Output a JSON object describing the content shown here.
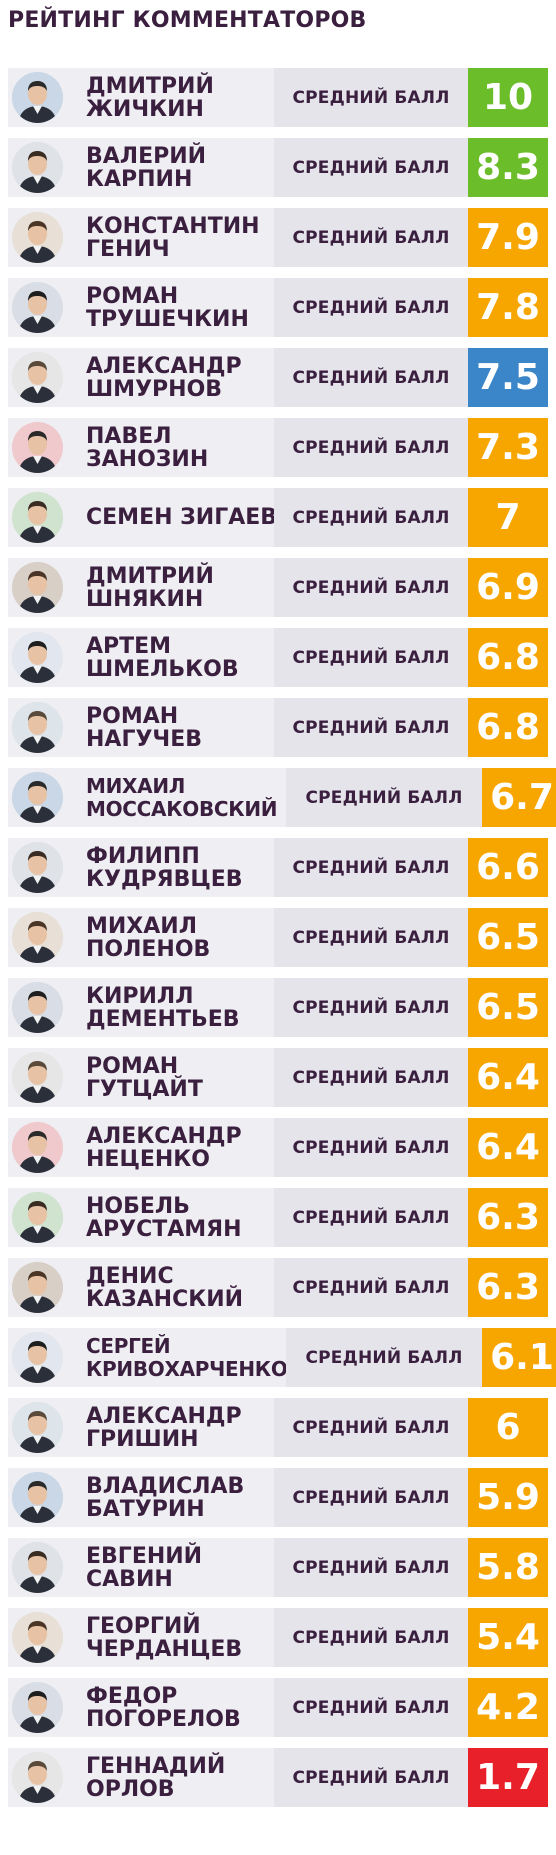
{
  "title": "РЕЙТИНГ КОММЕНТАТОРОВ",
  "avg_label": "СРЕДНИЙ БАЛЛ",
  "colors": {
    "green": "#6cbd2a",
    "orange": "#f7a600",
    "blue": "#3b86c9",
    "red": "#e8202a"
  },
  "commentators": [
    {
      "name": "ДМИТРИЙ\nЖИЧКИН",
      "score": "10",
      "score_value": 10,
      "color": "green"
    },
    {
      "name": "ВАЛЕРИЙ\nКАРПИН",
      "score": "8.3",
      "score_value": 8.3,
      "color": "green"
    },
    {
      "name": "КОНСТАНТИН\nГЕНИЧ",
      "score": "7.9",
      "score_value": 7.9,
      "color": "orange"
    },
    {
      "name": "РОМАН\nТРУШЕЧКИН",
      "score": "7.8",
      "score_value": 7.8,
      "color": "orange"
    },
    {
      "name": "АЛЕКСАНДР\nШМУРНОВ",
      "score": "7.5",
      "score_value": 7.5,
      "color": "blue"
    },
    {
      "name": "ПАВЕЛ\nЗАНОЗИН",
      "score": "7.3",
      "score_value": 7.3,
      "color": "orange"
    },
    {
      "name": "СЕМЕН ЗИГАЕВ",
      "score": "7",
      "score_value": 7,
      "color": "orange"
    },
    {
      "name": "ДМИТРИЙ\nШНЯКИН",
      "score": "6.9",
      "score_value": 6.9,
      "color": "orange"
    },
    {
      "name": "АРТЕМ\nШМЕЛЬКОВ",
      "score": "6.8",
      "score_value": 6.8,
      "color": "orange"
    },
    {
      "name": "РОМАН\nНАГУЧЕВ",
      "score": "6.8",
      "score_value": 6.8,
      "color": "orange"
    },
    {
      "name": "МИХАИЛ\nМОССАКОВСКИЙ",
      "score": "6.7",
      "score_value": 6.7,
      "color": "orange",
      "wide": true
    },
    {
      "name": "ФИЛИПП\nКУДРЯВЦЕВ",
      "score": "6.6",
      "score_value": 6.6,
      "color": "orange"
    },
    {
      "name": "МИХАИЛ\nПОЛЕНОВ",
      "score": "6.5",
      "score_value": 6.5,
      "color": "orange"
    },
    {
      "name": "КИРИЛЛ\nДЕМЕНТЬЕВ",
      "score": "6.5",
      "score_value": 6.5,
      "color": "orange"
    },
    {
      "name": "РОМАН\nГУТЦАЙТ",
      "score": "6.4",
      "score_value": 6.4,
      "color": "orange"
    },
    {
      "name": "АЛЕКСАНДР\nНЕЦЕНКО",
      "score": "6.4",
      "score_value": 6.4,
      "color": "orange"
    },
    {
      "name": "НОБЕЛЬ\nАРУСТАМЯН",
      "score": "6.3",
      "score_value": 6.3,
      "color": "orange"
    },
    {
      "name": "ДЕНИС\nКАЗАНСКИЙ",
      "score": "6.3",
      "score_value": 6.3,
      "color": "orange"
    },
    {
      "name": "СЕРГЕЙ\nКРИВОХАРЧЕНКО",
      "score": "6.1",
      "score_value": 6.1,
      "color": "orange",
      "wide": true
    },
    {
      "name": "АЛЕКСАНДР\nГРИШИН",
      "score": "6",
      "score_value": 6,
      "color": "orange"
    },
    {
      "name": "ВЛАДИСЛАВ\nБАТУРИН",
      "score": "5.9",
      "score_value": 5.9,
      "color": "orange"
    },
    {
      "name": "ЕВГЕНИЙ\nСАВИН",
      "score": "5.8",
      "score_value": 5.8,
      "color": "orange"
    },
    {
      "name": "ГЕОРГИЙ\nЧЕРДАНЦЕВ",
      "score": "5.4",
      "score_value": 5.4,
      "color": "orange"
    },
    {
      "name": "ФЕДОР\nПОГОРЕЛОВ",
      "score": "4.2",
      "score_value": 4.2,
      "color": "orange"
    },
    {
      "name": "ГЕННАДИЙ\nОРЛОВ",
      "score": "1.7",
      "score_value": 1.7,
      "color": "red"
    }
  ]
}
